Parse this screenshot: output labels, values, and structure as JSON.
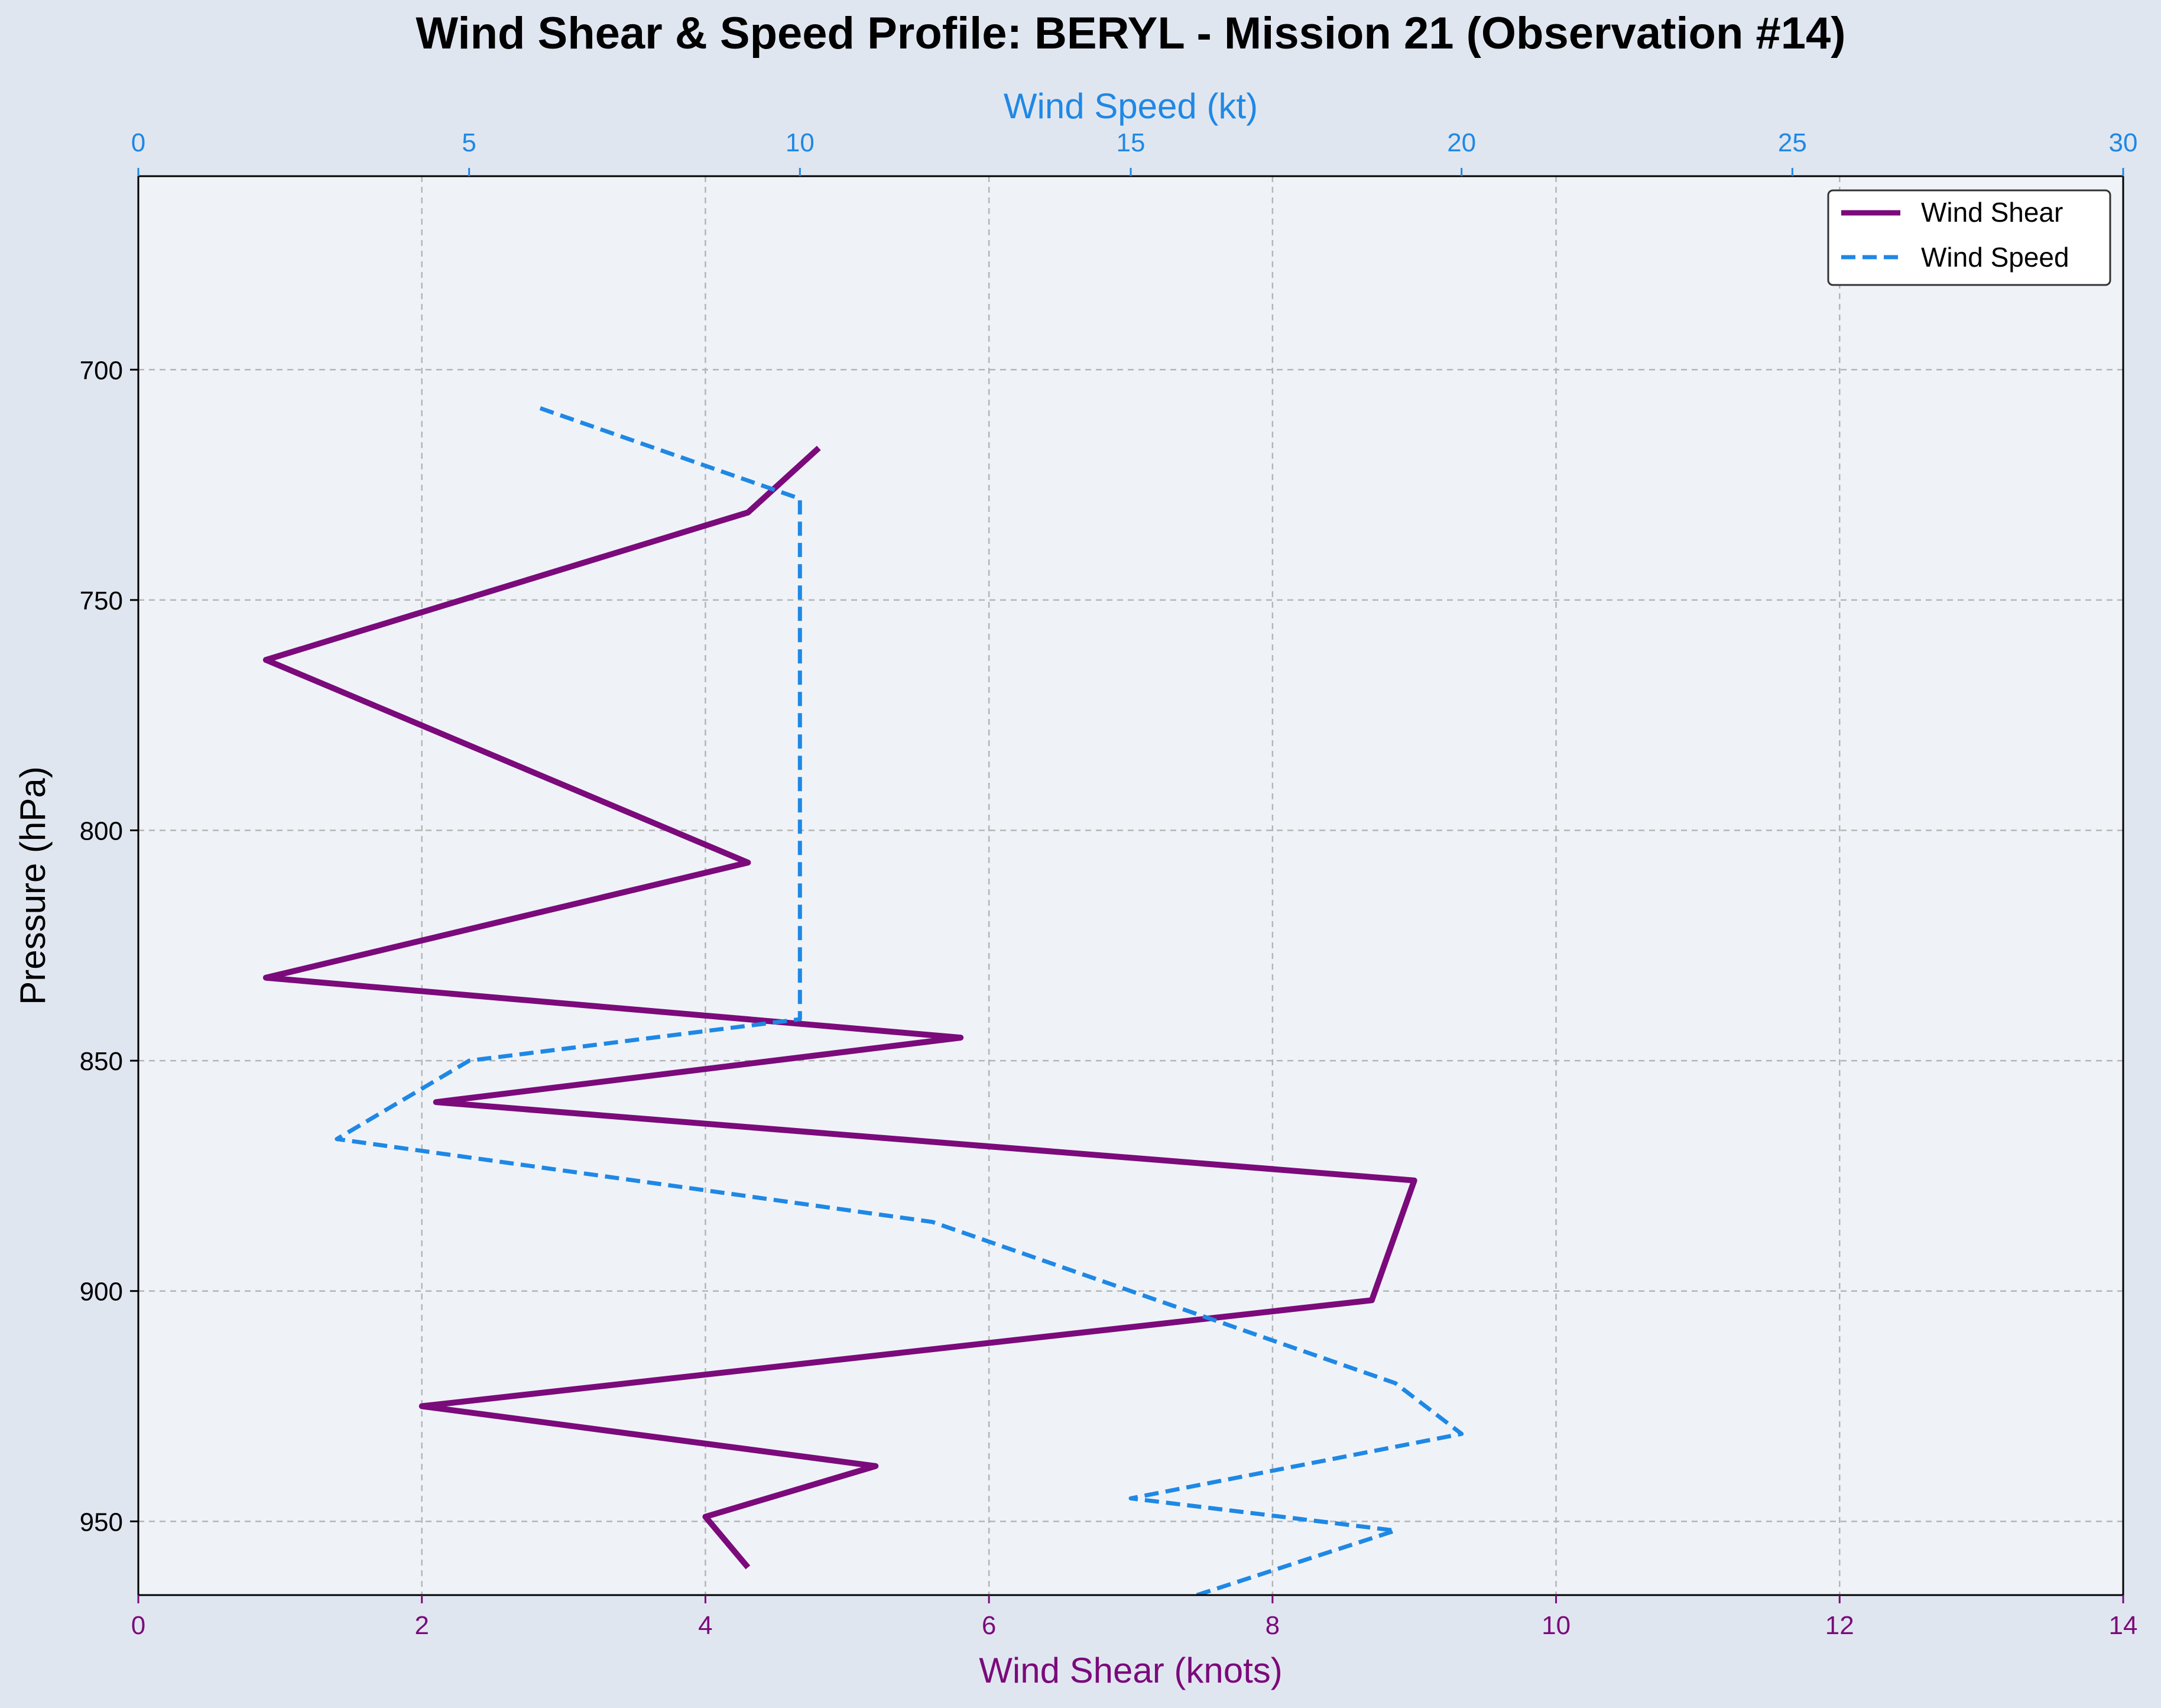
{
  "colors": {
    "page_background": "#e0e6f0",
    "plot_background": "#eff3f8",
    "shear": "#7b0a7b",
    "speed": "#1f88e5",
    "grid": "#b5b5b5",
    "axis": "#000000"
  },
  "chart_data": {
    "type": "line",
    "title": "Wind Shear & Speed Profile: BERYL - Mission 21 (Observation #14)",
    "ylabel": "Pressure (hPa)",
    "y_inverted": true,
    "ylim": [
      966,
      658
    ],
    "yticks": [
      700,
      750,
      800,
      850,
      900,
      950
    ],
    "xlabel_bottom": "Wind Shear (knots)",
    "xlim_bottom": [
      0,
      14
    ],
    "xticks_bottom": [
      0,
      2,
      4,
      6,
      8,
      10,
      12,
      14
    ],
    "xlabel_top": "Wind Speed (kt)",
    "xlim_top": [
      0,
      30
    ],
    "xticks_top": [
      0,
      5,
      10,
      15,
      20,
      25,
      30
    ],
    "grid": true,
    "legend_position": "top-right",
    "series": [
      {
        "name": "Wind Shear",
        "axis": "bottom",
        "style": "solid",
        "points": [
          {
            "x": 4.3,
            "y": 960
          },
          {
            "x": 4.0,
            "y": 949
          },
          {
            "x": 5.2,
            "y": 938
          },
          {
            "x": 2.0,
            "y": 925
          },
          {
            "x": 8.7,
            "y": 902
          },
          {
            "x": 9.0,
            "y": 876
          },
          {
            "x": 2.1,
            "y": 859
          },
          {
            "x": 5.8,
            "y": 845
          },
          {
            "x": 0.9,
            "y": 832
          },
          {
            "x": 4.3,
            "y": 807
          },
          {
            "x": 0.9,
            "y": 763
          },
          {
            "x": 4.3,
            "y": 731
          },
          {
            "x": 4.8,
            "y": 717
          }
        ]
      },
      {
        "name": "Wind Speed",
        "axis": "top",
        "style": "dashed",
        "points": [
          {
            "x": 16.0,
            "y": 966
          },
          {
            "x": 19.0,
            "y": 952
          },
          {
            "x": 15.0,
            "y": 945
          },
          {
            "x": 20.0,
            "y": 931
          },
          {
            "x": 19.0,
            "y": 920
          },
          {
            "x": 12.0,
            "y": 885
          },
          {
            "x": 3.0,
            "y": 867
          },
          {
            "x": 5.0,
            "y": 850
          },
          {
            "x": 10.0,
            "y": 841
          },
          {
            "x": 10.0,
            "y": 728
          },
          {
            "x": 6.0,
            "y": 708
          }
        ]
      }
    ]
  }
}
